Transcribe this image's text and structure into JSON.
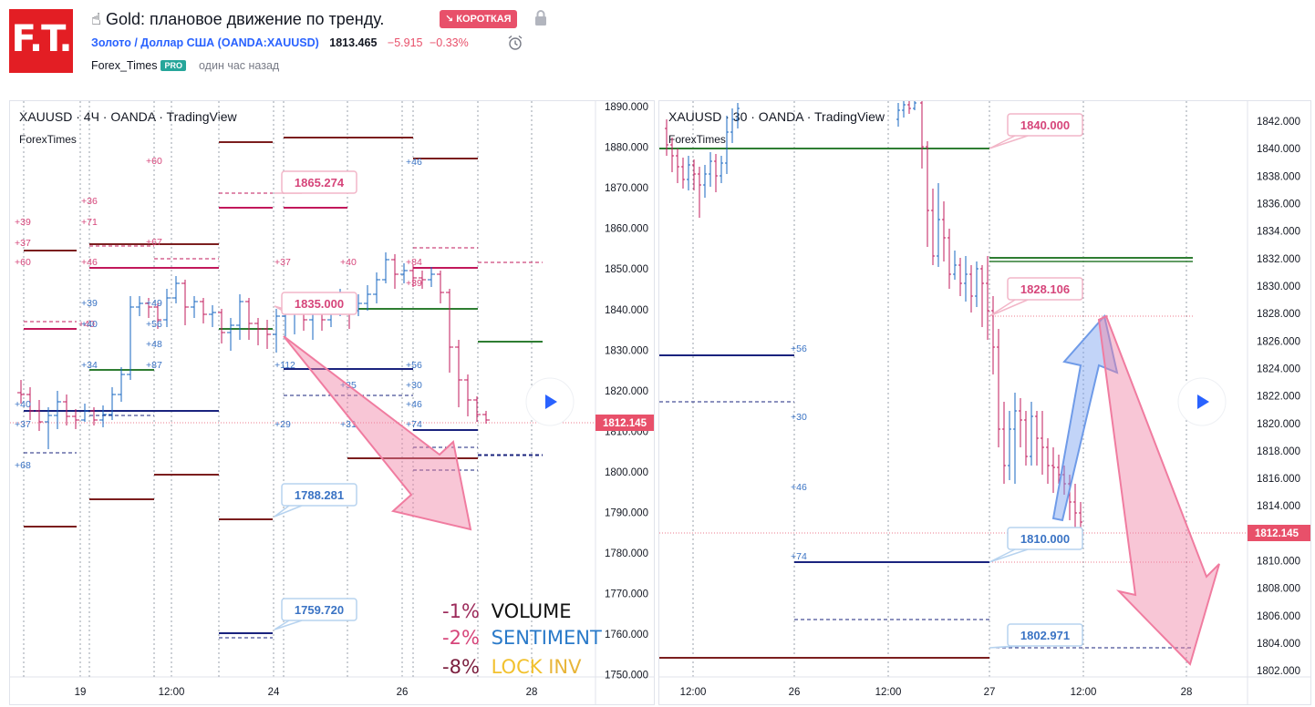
{
  "header": {
    "logo_text": "F.T.",
    "idea_title": "☝ Gold: плановое движение по тренду.",
    "badge": "↘ КОРОТКАЯ",
    "symbol_name": "Золото / Доллар США (OANDA:XAUUSD)",
    "price": "1813.465",
    "change": "−5.915",
    "change_pct": "−0.33%",
    "author": "Forex_Times",
    "pro_badge": "PRO",
    "published": "один час назад",
    "icons": [
      "hand-point-icon",
      "arrow-down-right-icon",
      "lock-icon",
      "alarm-clock-icon"
    ]
  },
  "colors": {
    "accent": "#2962ff",
    "short": "#e8506a",
    "down_candle": "#c2185b",
    "up_candle": "#1565c0",
    "dark_red_level": "#7b1e1e",
    "green_level": "#2e7d32",
    "blue_level": "#1a237e",
    "magenta_level": "#c2185b"
  },
  "left_chart": {
    "title": "XAUUSD · 4Ч · OANDA · TradingView",
    "watermark": "ForexTimes",
    "price_axis": [
      "1890.000",
      "1880.000",
      "1870.000",
      "1860.000",
      "1850.000",
      "1840.000",
      "1830.000",
      "1820.000",
      "1810.000",
      "1800.000",
      "1790.000",
      "1780.000",
      "1770.000",
      "1760.000",
      "1750.000"
    ],
    "time_axis": [
      "19",
      "12:00",
      "24",
      "26",
      "28"
    ],
    "current_price": "1812.145",
    "callouts": [
      {
        "label": "1865.274",
        "tone": "pink"
      },
      {
        "label": "1835.000",
        "tone": "pink"
      },
      {
        "label": "1788.281",
        "tone": "blue"
      },
      {
        "label": "1759.720",
        "tone": "blue"
      }
    ],
    "level_labels": [
      {
        "t": "+39",
        "tone": "pink"
      },
      {
        "t": "+37",
        "tone": "pink"
      },
      {
        "t": "+60",
        "tone": "pink"
      },
      {
        "t": "+36",
        "tone": "pink"
      },
      {
        "t": "+71",
        "tone": "pink"
      },
      {
        "t": "+46",
        "tone": "pink"
      },
      {
        "t": "+60",
        "tone": "pink"
      },
      {
        "t": "+67",
        "tone": "pink"
      },
      {
        "t": "+37",
        "tone": "pink"
      },
      {
        "t": "+40",
        "tone": "pink"
      },
      {
        "t": "+84",
        "tone": "pink"
      },
      {
        "t": "+39",
        "tone": "pink"
      },
      {
        "t": "+40",
        "tone": "pink"
      },
      {
        "t": "+39",
        "tone": "blue"
      },
      {
        "t": "+40",
        "tone": "blue"
      },
      {
        "t": "+34",
        "tone": "blue"
      },
      {
        "t": "+49",
        "tone": "blue"
      },
      {
        "t": "+56",
        "tone": "blue"
      },
      {
        "t": "+48",
        "tone": "blue"
      },
      {
        "t": "+87",
        "tone": "blue"
      },
      {
        "t": "+112",
        "tone": "blue"
      },
      {
        "t": "+40",
        "tone": "blue"
      },
      {
        "t": "+37",
        "tone": "blue"
      },
      {
        "t": "+68",
        "tone": "blue"
      },
      {
        "t": "+29",
        "tone": "blue"
      },
      {
        "t": "+31",
        "tone": "blue"
      },
      {
        "t": "+35",
        "tone": "blue"
      },
      {
        "t": "+30",
        "tone": "blue"
      },
      {
        "t": "+56",
        "tone": "blue"
      },
      {
        "t": "+46",
        "tone": "blue"
      },
      {
        "t": "+74",
        "tone": "blue"
      },
      {
        "t": "+46",
        "tone": "blue"
      }
    ],
    "legend": [
      {
        "pct": "-1%",
        "pct_color": "#9c2a5a",
        "label": "VOLUME",
        "label_color": "#111111",
        "extra": "",
        "extra_color": ""
      },
      {
        "pct": "-2%",
        "pct_color": "#d6457a",
        "label": "SENTIMENT",
        "label_color": "#2a7ac9",
        "extra": "",
        "extra_color": ""
      },
      {
        "pct": "-8%",
        "pct_color": "#7b1e3e",
        "label": "LOCK",
        "label_color": "#f2c12e",
        "extra": "INV",
        "extra_color": "#e8b53a"
      }
    ]
  },
  "right_chart": {
    "title": "XAUUSD · 30 · OANDA · TradingView",
    "watermark": "ForexTimes",
    "price_axis": [
      "1842.000",
      "1840.000",
      "1838.000",
      "1836.000",
      "1834.000",
      "1832.000",
      "1830.000",
      "1828.000",
      "1826.000",
      "1824.000",
      "1822.000",
      "1820.000",
      "1818.000",
      "1816.000",
      "1814.000",
      "1812.000",
      "1810.000",
      "1808.000",
      "1806.000",
      "1804.000",
      "1802.000"
    ],
    "time_axis": [
      "12:00",
      "26",
      "12:00",
      "27",
      "12:00",
      "28"
    ],
    "current_price": "1812.145",
    "callouts": [
      {
        "label": "1840.000",
        "tone": "pink"
      },
      {
        "label": "1828.106",
        "tone": "pink"
      },
      {
        "label": "1810.000",
        "tone": "blue"
      },
      {
        "label": "1802.971",
        "tone": "blue"
      }
    ],
    "level_labels": [
      {
        "t": "+56",
        "tone": "blue"
      },
      {
        "t": "+30",
        "tone": "blue"
      },
      {
        "t": "+46",
        "tone": "blue"
      },
      {
        "t": "+74",
        "tone": "blue"
      }
    ]
  }
}
